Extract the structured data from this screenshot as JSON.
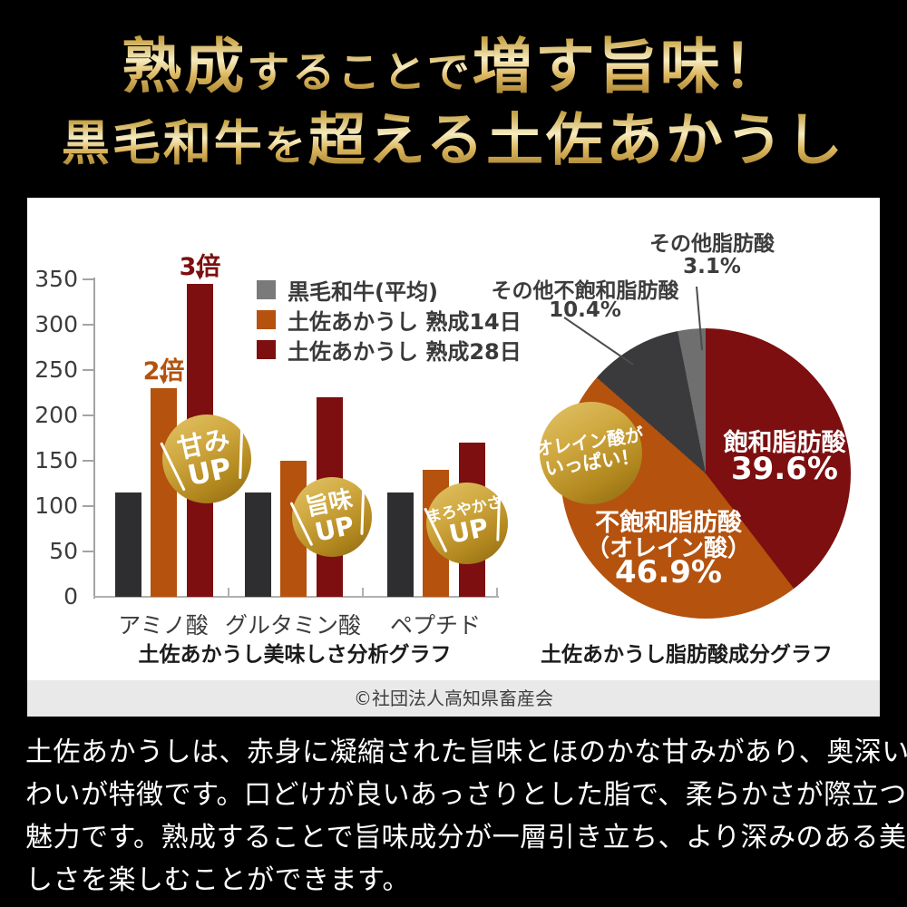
{
  "header": {
    "line1": {
      "seg1": "熟成",
      "seg2": "することで",
      "seg3": "増す旨味！"
    },
    "line2": {
      "seg1": "黒毛和牛",
      "seg2": "を",
      "seg3": "超える",
      "seg4": "土佐あかうし"
    }
  },
  "colors": {
    "background": "#000000",
    "panel": "#ffffff",
    "gold_accent": "#c9a23c",
    "maroon": "#7d0f10",
    "orange": "#b4520e",
    "bar_charcoal": "#2e2e30",
    "legend_gray": "#7a7a7a",
    "slice_dark_gray": "#3a3a3c",
    "slice_light_gray": "#6f6f70",
    "credit_strip": "#e9e9e9",
    "axis_gray": "#a3a3a3"
  },
  "chart_data": [
    {
      "type": "bar",
      "title": "土佐あかうし美味しさ分析グラフ",
      "categories": [
        "アミノ酸",
        "グルタミン酸",
        "ペプチド"
      ],
      "series": [
        {
          "name": "黒毛和牛(平均)",
          "color": "#2e2e30",
          "legend_color": "#7a7a7a",
          "values": [
            115,
            115,
            115
          ]
        },
        {
          "name": "土佐あかうし 熟成14日",
          "color": "#b4520e",
          "values": [
            230,
            150,
            140
          ]
        },
        {
          "name": "土佐あかうし 熟成28日",
          "color": "#7d0f10",
          "values": [
            345,
            220,
            170
          ]
        }
      ],
      "ylim": [
        0,
        350
      ],
      "ytick_step": 50,
      "grid": false,
      "legend_position": "top-right",
      "annotations": [
        {
          "text": "2倍",
          "color": "#b4520e",
          "category_index": 0,
          "series_index": 1
        },
        {
          "text": "3倍",
          "color": "#7d0f10",
          "category_index": 0,
          "series_index": 2
        }
      ],
      "badges": [
        {
          "line1": "甘み",
          "line2": "UP"
        },
        {
          "line1": "旨味",
          "line2": "UP"
        },
        {
          "line1": "まろやかさ",
          "line2": "UP"
        }
      ]
    },
    {
      "type": "pie",
      "title": "土佐あかうし脂肪酸成分グラフ",
      "slices": [
        {
          "label": "飽和脂肪酸",
          "value_pct": 39.6,
          "color": "#7d0f10",
          "label_position": "inside"
        },
        {
          "label": "不飽和脂肪酸",
          "label2": "（オレイン酸）",
          "value_pct": 46.9,
          "color": "#b4520e",
          "label_position": "inside"
        },
        {
          "label": "その他不飽和脂肪酸",
          "value_pct": 10.4,
          "color": "#3a3a3c",
          "label_position": "outside"
        },
        {
          "label": "その他脂肪酸",
          "value_pct": 3.1,
          "color": "#6f6f70",
          "label_position": "outside"
        }
      ],
      "badge": {
        "line1": "オレイン酸が",
        "line2": "いっぱい！"
      }
    }
  ],
  "credit": "©社団法人高知県畜産会",
  "footer": {
    "lines": [
      "土佐あかうしは、赤身に凝縮された旨味とほのかな甘みがあり、奥深い味",
      "わいが特徴です。口どけが良いあっさりとした脂で、柔らかさが際立つのも",
      "魅力です。熟成することで旨味成分が一層引き立ち、より深みのある美味",
      "しさを楽しむことができます。"
    ]
  }
}
